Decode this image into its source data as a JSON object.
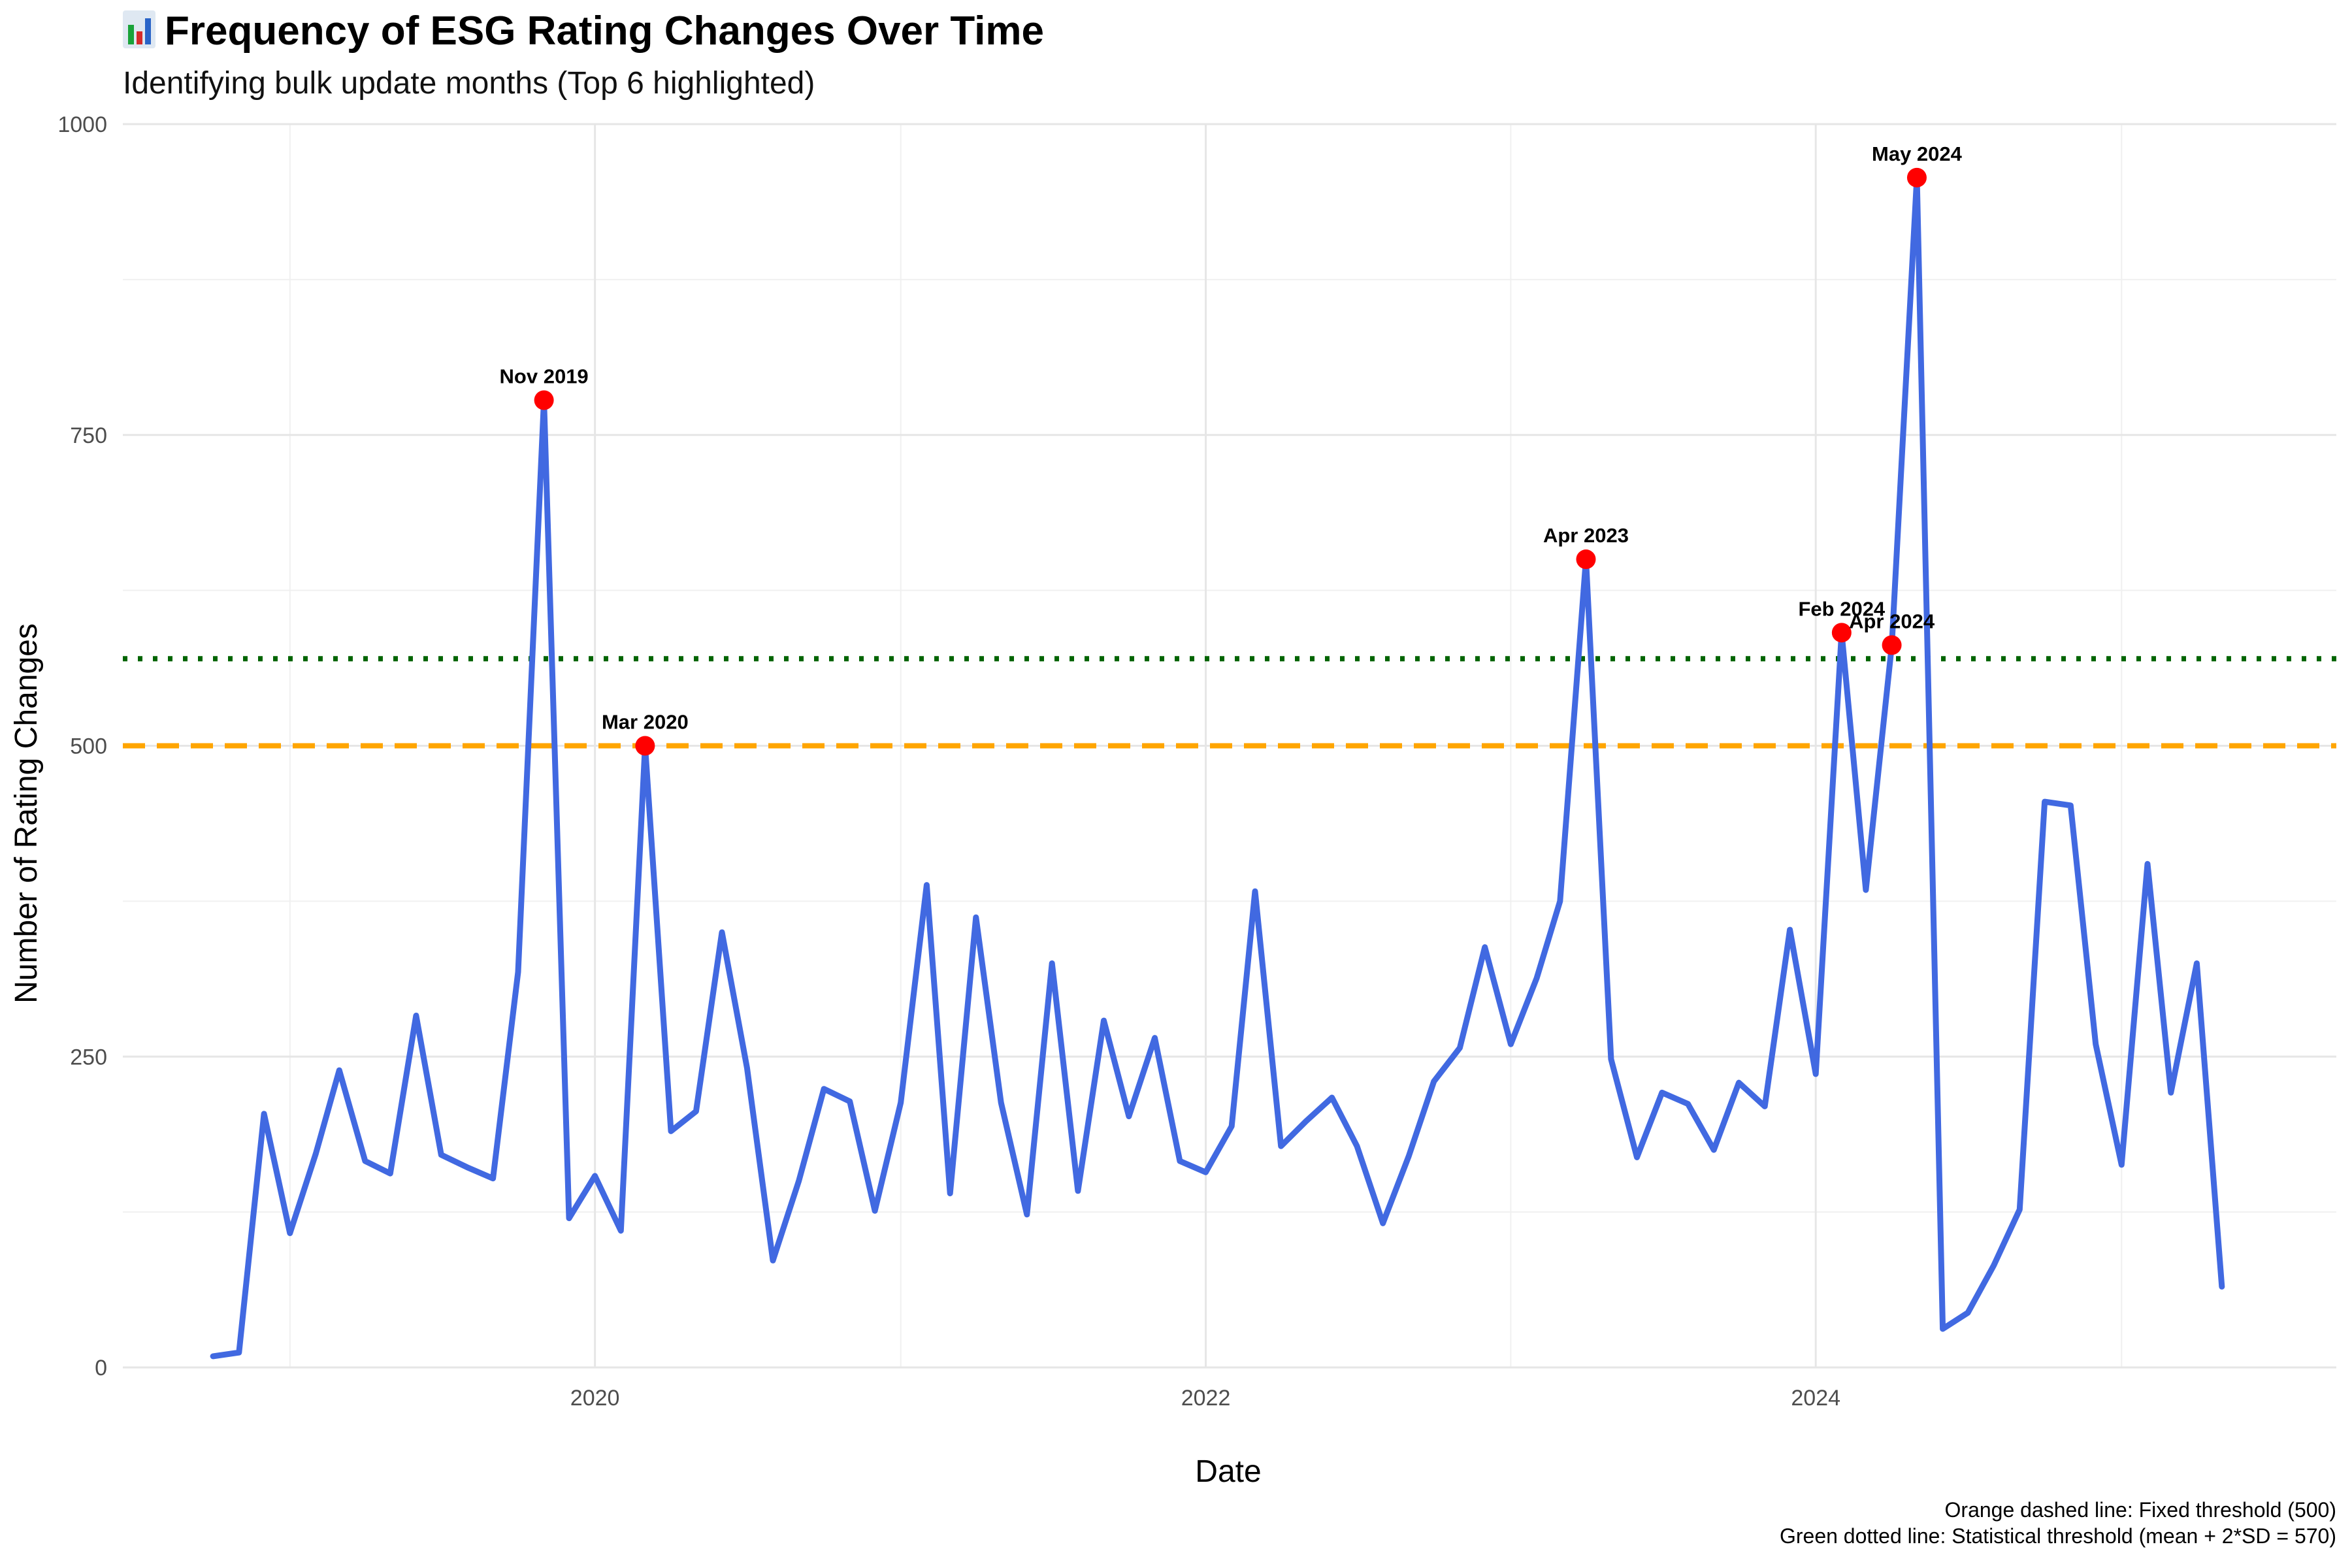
{
  "chart_data": {
    "type": "line",
    "title": "Frequency of ESG Rating Changes Over Time",
    "title_icon": "bar-chart-icon",
    "subtitle": "Identifying bulk update months (Top 6 highlighted)",
    "xlabel": "Date",
    "ylabel": "Number of Rating Changes",
    "xlim": [
      "2018-06-15",
      "2025-09-15"
    ],
    "ylim": [
      0,
      1000
    ],
    "x_ticks": [
      "2020",
      "2022",
      "2024"
    ],
    "x_tick_dates": [
      "2020-01-01",
      "2022-01-01",
      "2024-01-01"
    ],
    "y_ticks": [
      0,
      250,
      500,
      750,
      1000
    ],
    "grid": true,
    "series": [
      {
        "color": "#4169E1",
        "x": [
          "2018-10",
          "2018-11",
          "2018-12",
          "2019-01",
          "2019-02",
          "2019-03",
          "2019-04",
          "2019-05",
          "2019-06",
          "2019-07",
          "2019-08",
          "2019-09",
          "2019-10",
          "2019-11",
          "2019-12",
          "2020-01",
          "2020-02",
          "2020-03",
          "2020-04",
          "2020-05",
          "2020-06",
          "2020-07",
          "2020-08",
          "2020-09",
          "2020-10",
          "2020-11",
          "2020-12",
          "2021-01",
          "2021-02",
          "2021-03",
          "2021-04",
          "2021-05",
          "2021-06",
          "2021-07",
          "2021-08",
          "2021-09",
          "2021-10",
          "2021-11",
          "2021-12",
          "2022-01",
          "2022-02",
          "2022-03",
          "2022-04",
          "2022-05",
          "2022-06",
          "2022-07",
          "2022-08",
          "2022-09",
          "2022-10",
          "2022-11",
          "2022-12",
          "2023-01",
          "2023-02",
          "2023-03",
          "2023-04",
          "2023-05",
          "2023-06",
          "2023-07",
          "2023-08",
          "2023-09",
          "2023-10",
          "2023-11",
          "2023-12",
          "2024-01",
          "2024-02",
          "2024-03",
          "2024-04",
          "2024-05",
          "2024-06",
          "2024-07",
          "2024-08",
          "2024-09",
          "2024-10",
          "2024-11",
          "2024-12",
          "2025-01",
          "2025-02",
          "2025-03",
          "2025-04",
          "2025-05"
        ],
        "values": [
          9,
          12,
          204,
          108,
          172,
          239,
          166,
          156,
          283,
          171,
          161,
          152,
          318,
          778,
          120,
          154,
          110,
          500,
          190,
          206,
          350,
          241,
          86,
          150,
          224,
          214,
          126,
          213,
          388,
          140,
          362,
          213,
          123,
          325,
          142,
          279,
          202,
          265,
          166,
          157,
          194,
          383,
          178,
          198,
          217,
          178,
          116,
          170,
          230,
          257,
          338,
          260,
          313,
          375,
          650,
          248,
          169,
          221,
          212,
          175,
          229,
          210,
          352,
          236,
          591,
          384,
          581,
          957,
          31,
          44,
          82,
          127,
          455,
          452,
          260,
          163,
          405,
          221,
          325,
          65
        ]
      }
    ],
    "highlights": [
      {
        "x": "2019-11",
        "value": 778,
        "label": "Nov 2019"
      },
      {
        "x": "2020-03",
        "value": 500,
        "label": "Mar 2020"
      },
      {
        "x": "2023-04",
        "value": 650,
        "label": "Apr 2023"
      },
      {
        "x": "2024-02",
        "value": 591,
        "label": "Feb 2024"
      },
      {
        "x": "2024-04",
        "value": 581,
        "label": "Apr 2024"
      },
      {
        "x": "2024-05",
        "value": 957,
        "label": "May 2024"
      }
    ],
    "highlight_color": "#FF0000",
    "thresholds": [
      {
        "value": 500,
        "style": "dashed",
        "color": "#FFA500"
      },
      {
        "value": 570,
        "style": "dotted",
        "color": "#006400"
      }
    ],
    "captions": [
      "Orange dashed line: Fixed threshold (500)",
      "Green dotted line: Statistical threshold (mean + 2*SD = 570)"
    ]
  }
}
